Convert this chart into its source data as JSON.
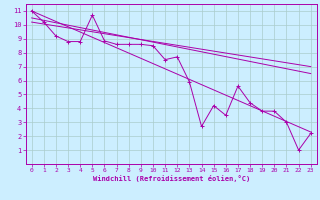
{
  "xlabel": "Windchill (Refroidissement éolien,°C)",
  "xlim": [
    -0.5,
    23.5
  ],
  "ylim": [
    0,
    11.5
  ],
  "xticks": [
    0,
    1,
    2,
    3,
    4,
    5,
    6,
    7,
    8,
    9,
    10,
    11,
    12,
    13,
    14,
    15,
    16,
    17,
    18,
    19,
    20,
    21,
    22,
    23
  ],
  "yticks": [
    1,
    2,
    3,
    4,
    5,
    6,
    7,
    8,
    9,
    10,
    11
  ],
  "bg_color": "#cceeff",
  "grid_color": "#aacccc",
  "line_color": "#aa00aa",
  "series1_x": [
    0,
    1,
    2,
    3,
    4,
    5,
    6,
    7,
    8,
    9,
    10,
    11,
    12,
    13,
    14,
    15,
    16,
    17,
    18,
    19,
    20,
    21,
    22,
    23
  ],
  "series1_y": [
    11.0,
    10.2,
    9.2,
    8.8,
    8.8,
    10.7,
    8.85,
    8.6,
    8.6,
    8.6,
    8.5,
    7.5,
    7.7,
    5.9,
    2.7,
    4.2,
    3.5,
    5.6,
    4.4,
    3.8,
    3.8,
    3.0,
    1.0,
    2.2
  ],
  "trend1_x": [
    0,
    23
  ],
  "trend1_y": [
    11.0,
    2.3
  ],
  "trend2_x": [
    0,
    23
  ],
  "trend2_y": [
    10.5,
    6.5
  ],
  "trend3_x": [
    0,
    23
  ],
  "trend3_y": [
    10.2,
    7.0
  ]
}
